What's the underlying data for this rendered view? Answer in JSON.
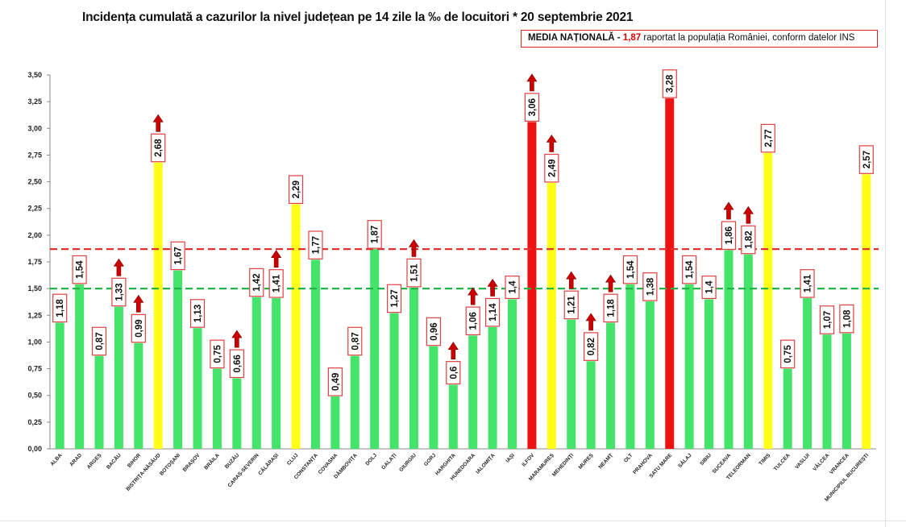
{
  "title": "Incidența cumulată a cazurilor la nivel județean pe 14 zile la ‰ de locuitori * 20 septembrie 2021",
  "media": {
    "label": "MEDIA NAȚIONALĂ",
    "dash": "-",
    "value": "1,87",
    "rest": "raportat la populația României, conform datelor INS"
  },
  "colors": {
    "green": "#44e36a",
    "yellow": "#ffff1a",
    "red": "#ee1111",
    "arrow": "#cc0000",
    "label_border": "#e04040",
    "ref_red": "#e53030",
    "ref_green": "#22b54a"
  },
  "chart_data": {
    "type": "bar",
    "title": "Incidența cumulată a cazurilor la nivel județean pe 14 zile la ‰ de locuitori * 20 septembrie 2021",
    "xlabel": "",
    "ylabel": "",
    "ylim": [
      0,
      3.5
    ],
    "yticks": [
      "0,00",
      "0,25",
      "0,50",
      "0,75",
      "1,00",
      "1,25",
      "1,50",
      "1,75",
      "2,00",
      "2,25",
      "2,50",
      "2,75",
      "3,00",
      "3,25",
      "3,50"
    ],
    "grid": false,
    "reference_lines": [
      {
        "value": 1.87,
        "color": "red",
        "style": "dashed"
      },
      {
        "value": 1.5,
        "color": "green",
        "style": "dashed"
      }
    ],
    "categories": [
      "ALBA",
      "ARAD",
      "ARGEȘ",
      "BACĂU",
      "BIHOR",
      "BISTRIȚA-NĂSĂUD",
      "BOTOȘANI",
      "BRAȘOV",
      "BRĂILA",
      "BUZĂU",
      "CARAȘ-SEVERIN",
      "CĂLĂRAȘI",
      "CLUJ",
      "CONSTANȚA",
      "COVASNA",
      "DÂMBOVIȚA",
      "DOLJ",
      "GALAȚI",
      "GIURGIU",
      "GORJ",
      "HARGHITA",
      "HUNEDOARA",
      "IALOMIȚA",
      "IAȘI",
      "ILFOV",
      "MARAMUREȘ",
      "MEHEDINȚI",
      "MUREȘ",
      "NEAMȚ",
      "OLT",
      "PRAHOVA",
      "SATU MARE",
      "SĂLAJ",
      "SIBIU",
      "SUCEAVA",
      "TELEORMAN",
      "TIMIȘ",
      "TULCEA",
      "VASLUI",
      "VÂLCEA",
      "VRANCEA",
      "MUNICIPIUL BUCUREȘTI"
    ],
    "values": [
      1.18,
      1.54,
      0.87,
      1.33,
      0.99,
      2.68,
      1.67,
      1.13,
      0.75,
      0.66,
      1.42,
      1.41,
      2.29,
      1.77,
      0.49,
      0.87,
      1.87,
      1.27,
      1.51,
      0.96,
      0.6,
      1.06,
      1.14,
      1.4,
      3.06,
      2.49,
      1.21,
      0.82,
      1.18,
      1.54,
      1.38,
      3.28,
      1.54,
      1.4,
      1.86,
      1.82,
      2.77,
      0.75,
      1.41,
      1.07,
      1.08,
      2.57
    ],
    "labels": [
      "1,18",
      "1,54",
      "0,87",
      "1,33",
      "0,99",
      "2,68",
      "1,67",
      "1,13",
      "0,75",
      "0,66",
      "1,42",
      "1,41",
      "2,29",
      "1,77",
      "0,49",
      "0,87",
      "1,87",
      "1,27",
      "1,51",
      "0,96",
      "0,6",
      "1,06",
      "1,14",
      "1,4",
      "3,06",
      "2,49",
      "1,21",
      "0,82",
      "1,18",
      "1,54",
      "1,38",
      "3,28",
      "1,54",
      "1,4",
      "1,86",
      "1,82",
      "2,77",
      "0,75",
      "1,41",
      "1,07",
      "1,08",
      "2,57"
    ],
    "bar_colors": [
      "green",
      "green",
      "green",
      "green",
      "green",
      "yellow",
      "green",
      "green",
      "green",
      "green",
      "green",
      "green",
      "yellow",
      "green",
      "green",
      "green",
      "green",
      "green",
      "green",
      "green",
      "green",
      "green",
      "green",
      "green",
      "red",
      "yellow",
      "green",
      "green",
      "green",
      "green",
      "green",
      "red",
      "green",
      "green",
      "green",
      "green",
      "yellow",
      "green",
      "green",
      "green",
      "green",
      "yellow"
    ],
    "up_arrows": [
      false,
      false,
      false,
      true,
      true,
      true,
      false,
      false,
      false,
      true,
      false,
      true,
      false,
      false,
      false,
      false,
      false,
      false,
      true,
      false,
      true,
      true,
      true,
      false,
      true,
      true,
      true,
      true,
      true,
      false,
      false,
      false,
      false,
      false,
      true,
      true,
      false,
      false,
      false,
      false,
      false,
      false
    ]
  }
}
